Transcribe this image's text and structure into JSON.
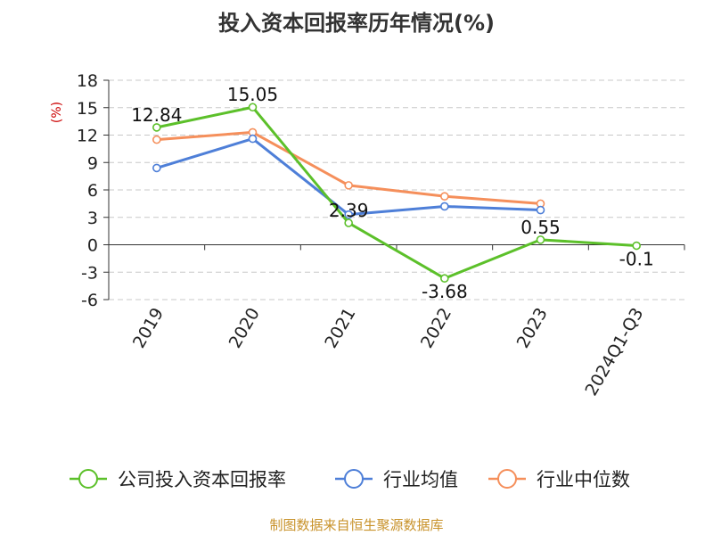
{
  "chart_data": {
    "type": "line",
    "title": "投入资本回报率历年情况(%)",
    "unit_label": "(%)",
    "categories": [
      "2019",
      "2020",
      "2021",
      "2022",
      "2023",
      "2024Q1-Q3"
    ],
    "ylim": [
      -6,
      18
    ],
    "yticks": [
      -6,
      -3,
      0,
      3,
      6,
      9,
      12,
      15,
      18
    ],
    "grid": true,
    "legend_position": "bottom",
    "series": [
      {
        "name": "公司投入资本回报率",
        "color": "#5cc02a",
        "values": [
          12.84,
          15.05,
          2.39,
          -3.68,
          0.55,
          -0.1
        ],
        "labels": [
          "12.84",
          "15.05",
          "2.39",
          "-3.68",
          "0.55",
          "-0.1"
        ],
        "show_labels": true
      },
      {
        "name": "行业均值",
        "color": "#4e7fd8",
        "values": [
          8.4,
          11.6,
          3.3,
          4.2,
          3.8,
          null
        ],
        "show_labels": false
      },
      {
        "name": "行业中位数",
        "color": "#f58f5b",
        "values": [
          11.5,
          12.3,
          6.5,
          5.3,
          4.5,
          null
        ],
        "show_labels": false
      }
    ]
  },
  "colors": {
    "title": "#333333",
    "unit": "#cc0000",
    "source": "#c8922a",
    "grid": "#c8c8c8",
    "axis": "#333333"
  },
  "source_text": "制图数据来自恒生聚源数据库"
}
